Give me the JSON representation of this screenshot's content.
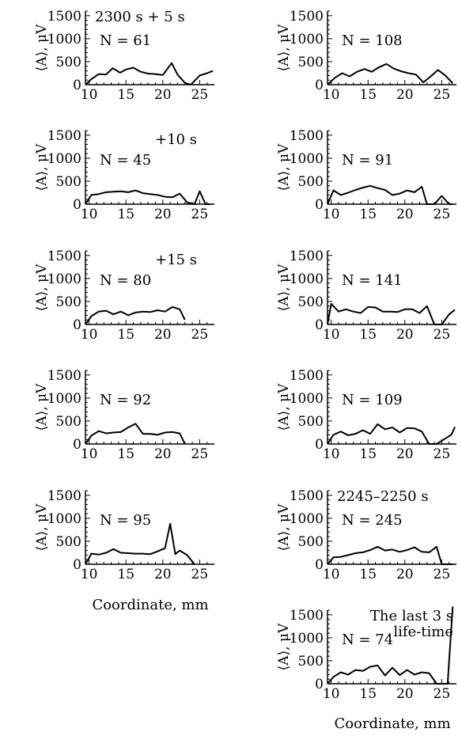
{
  "chart_data": [
    {
      "type": "line",
      "col": 0,
      "row": 0,
      "y_axis_label": "⟨A⟩, μV",
      "annotations": [
        "2300 s + 5 s"
      ],
      "n_label": "N = 61",
      "ylim": [
        0,
        1600
      ],
      "xlim": [
        9.5,
        27
      ],
      "x": [
        9.5,
        10.3,
        11.3,
        12.3,
        13.2,
        14.2,
        15.0,
        16.0,
        17.0,
        18.0,
        19.0,
        20.0,
        21.2,
        22.0,
        23.0,
        23.8,
        25.0,
        26.0,
        26.8
      ],
      "y": [
        0,
        120,
        230,
        220,
        360,
        260,
        330,
        370,
        280,
        240,
        230,
        210,
        470,
        220,
        40,
        0,
        200,
        250,
        300
      ]
    },
    {
      "type": "line",
      "col": 1,
      "row": 0,
      "y_axis_label": "⟨A⟩, μV",
      "annotations": [],
      "n_label": "N = 108",
      "ylim": [
        0,
        1600
      ],
      "xlim": [
        9.5,
        27
      ],
      "x": [
        9.5,
        10.5,
        11.5,
        12.5,
        13.5,
        14.5,
        15.5,
        16.5,
        17.5,
        18.5,
        19.5,
        20.5,
        21.5,
        22.5,
        23.5,
        24.5,
        25.5,
        26.5
      ],
      "y": [
        0,
        150,
        250,
        180,
        280,
        340,
        280,
        380,
        450,
        350,
        290,
        250,
        220,
        50,
        180,
        320,
        200,
        30
      ]
    },
    {
      "type": "line",
      "col": 0,
      "row": 1,
      "y_axis_label": "⟨A⟩, μV",
      "annotations": [
        "+10 s"
      ],
      "n_label": "N = 45",
      "ylim": [
        0,
        1600
      ],
      "xlim": [
        9.5,
        27
      ],
      "x": [
        9.5,
        10.3,
        11.3,
        12.3,
        13.3,
        14.3,
        15.3,
        16.3,
        17.3,
        18.3,
        19.3,
        20.3,
        21.3,
        22.3,
        23.3,
        24.3,
        25.0,
        25.8,
        26.5
      ],
      "y": [
        0,
        200,
        220,
        260,
        270,
        280,
        260,
        300,
        240,
        220,
        200,
        160,
        150,
        230,
        40,
        0,
        280,
        0,
        0
      ]
    },
    {
      "type": "line",
      "col": 1,
      "row": 1,
      "y_axis_label": "⟨A⟩, μV",
      "annotations": [],
      "n_label": "N = 91",
      "ylim": [
        0,
        1600
      ],
      "xlim": [
        9.5,
        27
      ],
      "x": [
        9.5,
        10.3,
        11.3,
        12.3,
        13.3,
        14.3,
        15.3,
        16.3,
        17.3,
        18.3,
        19.3,
        20.3,
        21.3,
        22.3,
        23.0,
        24.0,
        25.0,
        26.0,
        26.5
      ],
      "y": [
        0,
        300,
        200,
        250,
        310,
        360,
        400,
        350,
        310,
        200,
        230,
        300,
        260,
        380,
        0,
        0,
        180,
        0,
        0
      ]
    },
    {
      "type": "line",
      "col": 0,
      "row": 2,
      "y_axis_label": "⟨A⟩, μV",
      "annotations": [
        "+15 s"
      ],
      "n_label": "N = 80",
      "ylim": [
        0,
        1600
      ],
      "xlim": [
        9.5,
        27
      ],
      "x": [
        9.5,
        10.3,
        11.3,
        12.3,
        13.3,
        14.3,
        15.3,
        16.3,
        17.3,
        18.3,
        19.3,
        20.3,
        21.3,
        22.3,
        23.0
      ],
      "y": [
        0,
        180,
        280,
        300,
        220,
        280,
        200,
        260,
        280,
        270,
        310,
        280,
        380,
        330,
        100
      ]
    },
    {
      "type": "line",
      "col": 1,
      "row": 2,
      "y_axis_label": "⟨A⟩, μV",
      "annotations": [],
      "n_label": "N = 141",
      "ylim": [
        0,
        1600
      ],
      "xlim": [
        9.5,
        27
      ],
      "x": [
        9.5,
        10.0,
        11.0,
        12.0,
        13.0,
        14.0,
        15.0,
        16.0,
        17.0,
        18.0,
        19.0,
        20.0,
        21.0,
        22.0,
        23.0,
        24.0,
        25.0,
        26.0,
        26.8
      ],
      "y": [
        0,
        450,
        280,
        330,
        280,
        250,
        380,
        370,
        280,
        280,
        270,
        330,
        330,
        250,
        400,
        0,
        0,
        220,
        320
      ]
    },
    {
      "type": "line",
      "col": 0,
      "row": 3,
      "y_axis_label": "⟨A⟩, μV",
      "annotations": [],
      "n_label": "N = 92",
      "ylim": [
        0,
        1600
      ],
      "xlim": [
        9.5,
        27
      ],
      "x": [
        9.5,
        10.3,
        11.3,
        12.3,
        13.3,
        14.3,
        15.3,
        16.3,
        17.3,
        18.3,
        19.3,
        20.3,
        21.3,
        22.3,
        23.0
      ],
      "y": [
        0,
        180,
        280,
        230,
        250,
        260,
        360,
        440,
        220,
        220,
        200,
        250,
        260,
        230,
        0
      ]
    },
    {
      "type": "line",
      "col": 1,
      "row": 3,
      "y_axis_label": "⟨A⟩, μV",
      "annotations": [],
      "n_label": "N = 109",
      "ylim": [
        0,
        1600
      ],
      "xlim": [
        9.5,
        27
      ],
      "x": [
        9.5,
        10.3,
        11.3,
        12.3,
        13.3,
        14.3,
        15.3,
        16.3,
        17.3,
        18.3,
        19.3,
        20.3,
        21.3,
        22.3,
        23.3,
        24.3,
        25.3,
        26.3,
        26.8
      ],
      "y": [
        0,
        200,
        270,
        190,
        220,
        300,
        220,
        430,
        320,
        360,
        250,
        350,
        340,
        270,
        0,
        0,
        100,
        200,
        370
      ]
    },
    {
      "type": "line",
      "col": 0,
      "row": 4,
      "y_axis_label": "⟨A⟩, μV",
      "annotations": [],
      "n_label": "N = 95",
      "ylim": [
        0,
        1600
      ],
      "xlim": [
        9.5,
        27
      ],
      "x": [
        9.5,
        10.3,
        11.3,
        12.3,
        13.3,
        14.3,
        15.3,
        16.3,
        17.3,
        18.3,
        19.3,
        20.3,
        21.0,
        21.7,
        22.3,
        23.3,
        24.3
      ],
      "y": [
        0,
        230,
        210,
        250,
        330,
        250,
        240,
        230,
        230,
        220,
        280,
        350,
        880,
        220,
        300,
        200,
        0
      ]
    },
    {
      "type": "line",
      "col": 1,
      "row": 4,
      "y_axis_label": "⟨A⟩, μV",
      "annotations": [
        "2245–2250 s"
      ],
      "n_label": "N = 245",
      "ylim": [
        0,
        1600
      ],
      "xlim": [
        9.5,
        27
      ],
      "x": [
        9.5,
        10.3,
        11.3,
        12.3,
        13.3,
        14.3,
        15.3,
        16.3,
        17.3,
        18.3,
        19.3,
        20.3,
        21.3,
        22.3,
        23.3,
        24.3,
        25.0,
        25.8,
        26.5
      ],
      "y": [
        0,
        150,
        160,
        200,
        240,
        260,
        310,
        380,
        300,
        320,
        270,
        310,
        370,
        270,
        260,
        380,
        0,
        0,
        0
      ]
    },
    {
      "type": "line",
      "col": 1,
      "row": 5,
      "y_axis_label": "⟨A⟩, μV",
      "annotations": [
        "The last 3 s",
        "life-time"
      ],
      "n_label": "N = 74",
      "ylim": [
        0,
        1600
      ],
      "xlim": [
        9.5,
        27
      ],
      "x": [
        9.5,
        10.3,
        11.3,
        12.3,
        13.3,
        14.3,
        15.3,
        16.3,
        17.3,
        18.3,
        19.3,
        20.3,
        21.3,
        22.3,
        23.3,
        24.3,
        25.0,
        25.8,
        26.5
      ],
      "y": [
        0,
        150,
        250,
        200,
        300,
        280,
        370,
        400,
        180,
        350,
        190,
        300,
        200,
        250,
        230,
        0,
        0,
        0,
        1680
      ]
    }
  ],
  "x_axis_label_left": "Coordinate, mm",
  "x_axis_label_right": "Coordinate, mm"
}
